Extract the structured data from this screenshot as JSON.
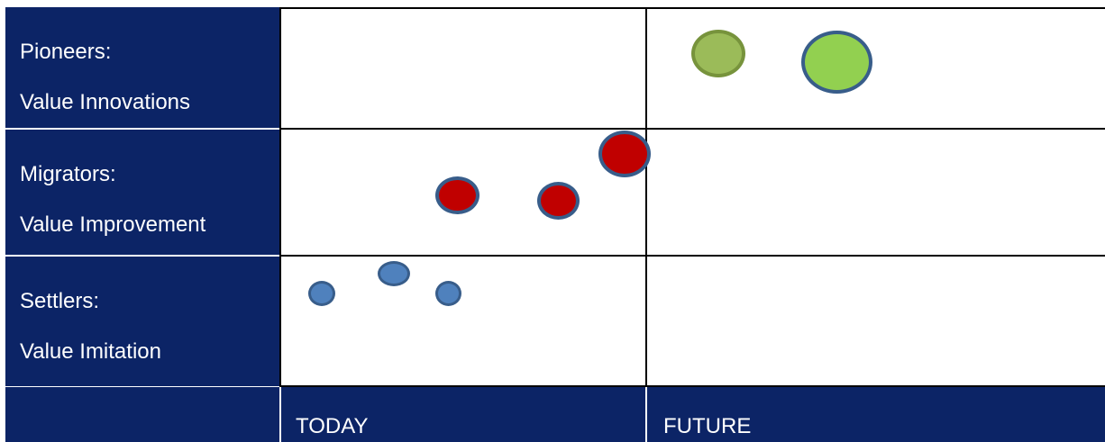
{
  "rows": [
    {
      "label_line1": "Pioneers:",
      "label_line2": "Value Innovations"
    },
    {
      "label_line1": "Migrators:",
      "label_line2": "Value Improvement"
    },
    {
      "label_line1": "Settlers:",
      "label_line2": "Value Imitation"
    }
  ],
  "columns": [
    {
      "label": "TODAY"
    },
    {
      "label": "FUTURE"
    }
  ],
  "bubbles": [
    {
      "group": "pioneers",
      "fill": "#9bbb59",
      "stroke": "#77933c",
      "size": "medium"
    },
    {
      "group": "pioneers",
      "fill": "#92d050",
      "stroke": "#385d8a",
      "size": "large"
    },
    {
      "group": "migrators",
      "fill": "#c00000",
      "stroke": "#385d8a",
      "size": "medium"
    },
    {
      "group": "migrators",
      "fill": "#c00000",
      "stroke": "#385d8a",
      "size": "medium"
    },
    {
      "group": "migrators",
      "fill": "#c00000",
      "stroke": "#385d8a",
      "size": "large"
    },
    {
      "group": "settlers",
      "fill": "#4f81bd",
      "stroke": "#385d8a",
      "size": "small"
    },
    {
      "group": "settlers",
      "fill": "#4f81bd",
      "stroke": "#385d8a",
      "size": "small"
    },
    {
      "group": "settlers",
      "fill": "#4f81bd",
      "stroke": "#385d8a",
      "size": "small"
    }
  ],
  "colors": {
    "header_bg": "#0c2466",
    "header_text": "#ffffff",
    "grid_line": "#000000"
  }
}
